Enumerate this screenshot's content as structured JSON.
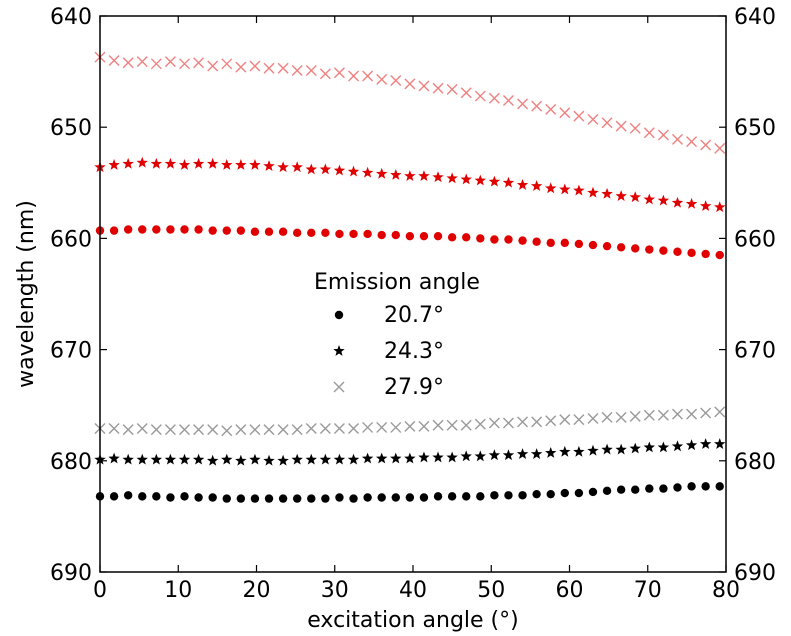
{
  "chart_data": {
    "type": "scatter",
    "xlabel": "excitation angle (°)",
    "ylabel": "wavelength (nm)",
    "xlim": [
      0,
      80
    ],
    "ylim": [
      690,
      640
    ],
    "y_inverted": true,
    "y_axis_mirrored_right": true,
    "xticks": [
      "0",
      "10",
      "20",
      "30",
      "40",
      "50",
      "60",
      "70",
      "80"
    ],
    "yticks": [
      "640",
      "650",
      "660",
      "670",
      "680",
      "690"
    ],
    "grid": false,
    "legend": {
      "title": "Emission angle",
      "placement": "center",
      "entries": [
        {
          "label": "20.7°",
          "marker": "circle"
        },
        {
          "label": "24.3°",
          "marker": "star"
        },
        {
          "label": "27.9°",
          "marker": "x"
        }
      ]
    },
    "x": [
      0,
      1.8,
      3.6,
      5.4,
      7.2,
      9,
      10.8,
      12.6,
      14.4,
      16.2,
      18,
      19.8,
      21.6,
      23.4,
      25.2,
      27,
      28.8,
      30.6,
      32.4,
      34.2,
      36,
      37.8,
      39.6,
      41.4,
      43.2,
      45,
      46.8,
      48.6,
      50.4,
      52.2,
      54,
      55.8,
      57.6,
      59.4,
      61.2,
      63,
      64.8,
      66.6,
      68.4,
      70.2,
      72,
      73.8,
      75.6,
      77.4,
      79.2
    ],
    "series": [
      {
        "color": "#e00000",
        "marker": "circle",
        "band": "upper",
        "values": [
          659.3,
          659.3,
          659.2,
          659.2,
          659.2,
          659.2,
          659.2,
          659.2,
          659.3,
          659.3,
          659.3,
          659.4,
          659.4,
          659.4,
          659.5,
          659.5,
          659.5,
          659.6,
          659.6,
          659.6,
          659.7,
          659.7,
          659.8,
          659.8,
          659.8,
          659.9,
          659.9,
          660.0,
          660.1,
          660.1,
          660.2,
          660.3,
          660.4,
          660.4,
          660.5,
          660.6,
          660.7,
          660.8,
          660.9,
          661.0,
          661.1,
          661.2,
          661.3,
          661.4,
          661.5
        ]
      },
      {
        "color": "#e00000",
        "marker": "star",
        "band": "upper",
        "values": [
          653.6,
          653.4,
          653.3,
          653.2,
          653.3,
          653.3,
          653.4,
          653.3,
          653.3,
          653.4,
          653.4,
          653.4,
          653.5,
          653.6,
          653.6,
          653.8,
          653.8,
          653.9,
          654.0,
          654.1,
          654.2,
          654.3,
          654.4,
          654.4,
          654.5,
          654.6,
          654.7,
          654.8,
          654.9,
          655.0,
          655.2,
          655.3,
          655.5,
          655.6,
          655.7,
          655.9,
          656.0,
          656.2,
          656.3,
          656.5,
          656.6,
          656.8,
          656.9,
          657.1,
          657.2
        ]
      },
      {
        "color": "#f08080",
        "marker": "x",
        "band": "upper",
        "values": [
          643.7,
          644.0,
          644.2,
          644.1,
          644.3,
          644.1,
          644.3,
          644.2,
          644.5,
          644.3,
          644.6,
          644.5,
          644.7,
          644.7,
          644.9,
          644.9,
          645.2,
          645.1,
          645.4,
          645.4,
          645.7,
          645.8,
          646.1,
          646.3,
          646.5,
          646.6,
          646.9,
          647.2,
          647.4,
          647.6,
          647.9,
          648.1,
          648.4,
          648.7,
          649.0,
          649.3,
          649.6,
          649.9,
          650.1,
          650.5,
          650.7,
          651.1,
          651.3,
          651.6,
          651.9
        ]
      },
      {
        "color": "#000000",
        "marker": "circle",
        "band": "lower",
        "values": [
          683.2,
          683.2,
          683.1,
          683.2,
          683.2,
          683.3,
          683.2,
          683.3,
          683.3,
          683.4,
          683.4,
          683.4,
          683.4,
          683.4,
          683.4,
          683.4,
          683.4,
          683.3,
          683.4,
          683.3,
          683.3,
          683.3,
          683.3,
          683.3,
          683.2,
          683.2,
          683.2,
          683.2,
          683.1,
          683.1,
          683.1,
          683.0,
          683.0,
          682.9,
          682.9,
          682.8,
          682.7,
          682.6,
          682.6,
          682.5,
          682.5,
          682.4,
          682.3,
          682.3,
          682.3
        ]
      },
      {
        "color": "#000000",
        "marker": "star",
        "band": "lower",
        "values": [
          679.9,
          679.8,
          679.9,
          679.9,
          679.9,
          679.9,
          679.9,
          679.9,
          680.0,
          679.9,
          680.0,
          679.9,
          680.0,
          680.0,
          679.9,
          679.9,
          679.9,
          679.9,
          679.9,
          679.8,
          679.8,
          679.8,
          679.8,
          679.7,
          679.7,
          679.7,
          679.6,
          679.6,
          679.5,
          679.5,
          679.4,
          679.4,
          679.3,
          679.2,
          679.2,
          679.1,
          679.0,
          679.0,
          678.9,
          678.8,
          678.8,
          678.7,
          678.6,
          678.5,
          678.5
        ]
      },
      {
        "color": "#999999",
        "marker": "x",
        "band": "lower",
        "values": [
          677.1,
          677.1,
          677.2,
          677.1,
          677.2,
          677.2,
          677.2,
          677.2,
          677.2,
          677.3,
          677.2,
          677.2,
          677.2,
          677.2,
          677.2,
          677.1,
          677.1,
          677.1,
          677.1,
          677.0,
          677.0,
          677.0,
          676.9,
          676.9,
          676.8,
          676.8,
          676.8,
          676.7,
          676.6,
          676.6,
          676.5,
          676.5,
          676.4,
          676.3,
          676.3,
          676.2,
          676.1,
          676.1,
          676.0,
          675.9,
          675.9,
          675.8,
          675.8,
          675.7,
          675.6
        ]
      }
    ]
  }
}
